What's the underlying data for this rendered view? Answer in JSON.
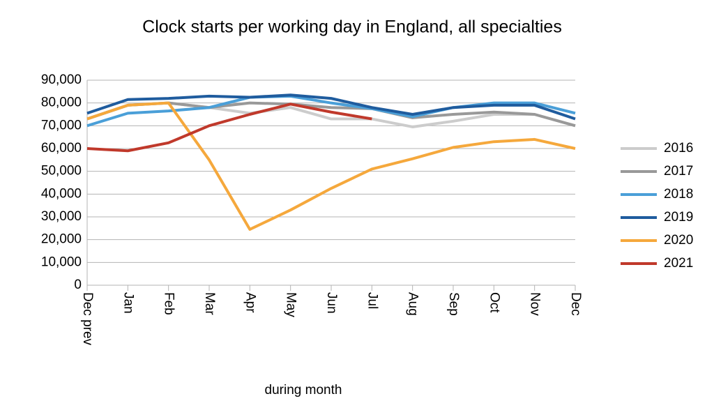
{
  "chart_data": {
    "type": "line",
    "title": "Clock starts per working day in England, all specialties",
    "x_label": "during  month",
    "categories": [
      "Dec prev",
      "Jan",
      "Feb",
      "Mar",
      "Apr",
      "May",
      "Jun",
      "Jul",
      "Aug",
      "Sep",
      "Oct",
      "Nov",
      "Dec"
    ],
    "series": [
      {
        "name": "2016",
        "color": "#cccccc",
        "values": [
          73000,
          79000,
          80000,
          78000,
          75500,
          78000,
          73000,
          73000,
          69500,
          72000,
          75000,
          75000,
          70000
        ]
      },
      {
        "name": "2017",
        "color": "#999999",
        "values": [
          73000,
          79000,
          80000,
          78000,
          80000,
          79500,
          78000,
          77500,
          73500,
          75000,
          76000,
          75000,
          70000
        ]
      },
      {
        "name": "2018",
        "color": "#4a9fd8",
        "values": [
          70000,
          75500,
          76500,
          78000,
          82500,
          83000,
          80000,
          77500,
          74000,
          78000,
          80000,
          80000,
          75500
        ]
      },
      {
        "name": "2019",
        "color": "#1f5c9e",
        "values": [
          75500,
          81500,
          82000,
          83000,
          82500,
          83500,
          82000,
          78000,
          75000,
          78000,
          79000,
          79000,
          73000
        ]
      },
      {
        "name": "2020",
        "color": "#f5a83c",
        "values": [
          73000,
          79000,
          80000,
          55000,
          24500,
          33000,
          42500,
          51000,
          55500,
          60500,
          63000,
          64000,
          60000
        ]
      },
      {
        "name": "2021",
        "color": "#c0392b",
        "values": [
          60000,
          59000,
          62500,
          70000,
          75000,
          79500,
          76000,
          73000,
          null,
          null,
          null,
          null,
          null
        ]
      }
    ],
    "ylim": [
      0,
      90000
    ],
    "yticks": [
      0,
      {
        "value": 10000,
        "label": "10,000"
      },
      {
        "value": 20000,
        "label": "20,000"
      },
      {
        "value": 30000,
        "label": "30,000"
      },
      {
        "value": 40000,
        "label": "40,000"
      },
      {
        "value": 50000,
        "label": "50,000"
      },
      {
        "value": 60000,
        "label": "60,000"
      },
      {
        "value": 70000,
        "label": "70,000"
      },
      {
        "value": 80000,
        "label": "80,000"
      },
      {
        "value": 90000,
        "label": "90,000"
      }
    ],
    "grid": true,
    "legend": "right"
  }
}
